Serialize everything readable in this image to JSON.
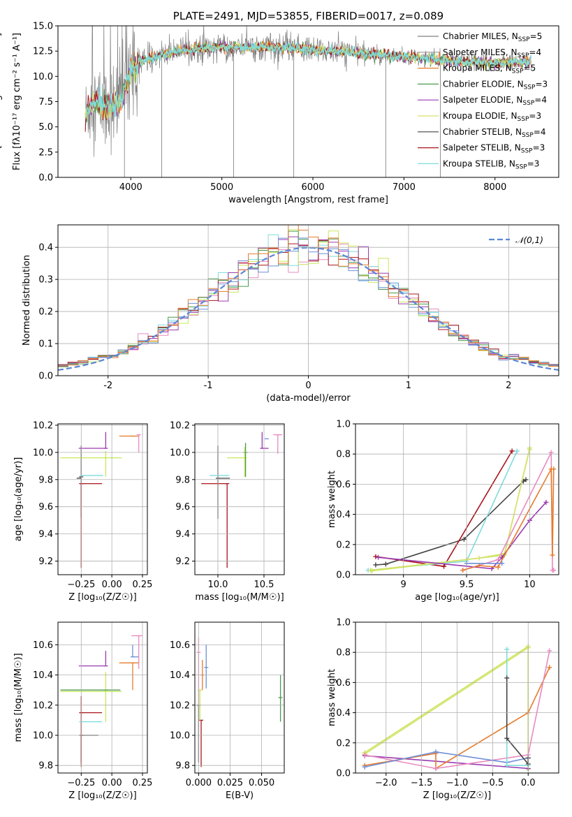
{
  "colors": {
    "Chabrier MILES": "#7f7f7f",
    "Salpeter MILES": "#999999",
    "Kroupa MILES": "#e57b2b",
    "Chabrier ELODIE": "#4c9a4c",
    "Salpeter ELODIE": "#9a3ab0",
    "Kroupa ELODIE": "#d8e16e",
    "Chabrier STELIB": "#444444",
    "Salpeter STELIB": "#a8141c",
    "Kroupa STELIB": "#7fdbdb",
    "pink": "#e88ac0",
    "blue": "#6f8fd8",
    "lime": "#c6e85a",
    "normal": "#5b86d6"
  },
  "chart_data": [
    {
      "id": "spectrum",
      "type": "line",
      "title": "PLATE=2491, MJD=53855, FIBERID=0017, z=0.089",
      "xlabel": "wavelength [Angstrom, rest frame]",
      "ylabel": "Flux [fλ10⁻¹⁷ erg cm⁻² s⁻¹ A⁻¹]",
      "xlim": [
        3200,
        8700
      ],
      "ylim": [
        0,
        15
      ],
      "xticks": [
        4000,
        5000,
        6000,
        7000,
        8000
      ],
      "yticks": [
        0.0,
        2.5,
        5.0,
        7.5,
        10.0,
        12.5,
        15.0
      ],
      "legend_position": "upper-right",
      "legend": [
        {
          "label": "Chabrier MILES, N",
          "sub": "SSP",
          "suffix": "=5",
          "color": "#7f7f7f"
        },
        {
          "label": "Salpeter MILES, N",
          "sub": "SSP",
          "suffix": "=4",
          "color": "#999999"
        },
        {
          "label": "Kroupa MILES, N",
          "sub": "SSP",
          "suffix": "=5",
          "color": "#e57b2b"
        },
        {
          "label": "Chabrier ELODIE, N",
          "sub": "SSP",
          "suffix": "=3",
          "color": "#4c9a4c"
        },
        {
          "label": "Salpeter ELODIE, N",
          "sub": "SSP",
          "suffix": "=4",
          "color": "#9a3ab0"
        },
        {
          "label": "Kroupa ELODIE, N",
          "sub": "SSP",
          "suffix": "=3",
          "color": "#d8e16e"
        },
        {
          "label": "Chabrier STELIB, N",
          "sub": "SSP",
          "suffix": "=4",
          "color": "#444444"
        },
        {
          "label": "Salpeter STELIB, N",
          "sub": "SSP",
          "suffix": "=3",
          "color": "#a8141c"
        },
        {
          "label": "Kroupa STELIB, N",
          "sub": "SSP",
          "suffix": "=3",
          "color": "#7fdbdb"
        }
      ],
      "model_curve": {
        "x": [
          3500,
          3550,
          3600,
          3700,
          3800,
          3900,
          4000,
          4100,
          4200,
          4300,
          4400,
          4500,
          4700,
          5000,
          5200,
          5500,
          5800,
          6000,
          6200,
          6500,
          6800,
          7000,
          7200,
          7400,
          7600,
          7800,
          8000,
          8200,
          8400
        ],
        "y": [
          5.8,
          7.2,
          7.6,
          6.9,
          7.0,
          7.8,
          10.6,
          11.4,
          11.8,
          12.0,
          12.2,
          12.5,
          12.7,
          12.9,
          12.9,
          12.9,
          12.8,
          12.6,
          12.5,
          12.3,
          12.1,
          11.9,
          11.8,
          11.6,
          11.5,
          11.4,
          11.3,
          11.4,
          11.5
        ]
      },
      "noise_amplitude": 1.6,
      "absorption_spikes": [
        3930,
        4340,
        5130,
        5790,
        6800,
        7400
      ]
    },
    {
      "id": "residuals",
      "type": "bar",
      "xlabel": "(data-model)/error",
      "ylabel": "Normed distribution",
      "xlim": [
        -2.5,
        2.5
      ],
      "ylim": [
        0,
        0.47
      ],
      "xticks": [
        -2,
        -1,
        0,
        1,
        2
      ],
      "yticks": [
        0.0,
        0.1,
        0.2,
        0.3,
        0.4
      ],
      "legend_position": "upper-right",
      "legend_label": "𝒩(0,1)",
      "bin_width": 0.1,
      "gaussian": {
        "mean": 0,
        "sigma": 1
      }
    },
    {
      "id": "age-vs-Z",
      "type": "scatter",
      "xlabel": "Z [log₁₀(Z/Z☉)]",
      "ylabel": "age  [log₁₀(age/yr)]",
      "xlim": [
        -0.44,
        0.29
      ],
      "ylim": [
        9.1,
        10.21
      ],
      "xticks": [
        -0.25,
        0.0,
        0.25
      ],
      "xtick_labels": [
        "−0.25",
        "0.00",
        "0.25"
      ],
      "yticks": [
        9.2,
        9.4,
        9.6,
        9.8,
        10.0,
        10.2
      ],
      "points": [
        {
          "x": -0.25,
          "y": 9.82,
          "xerr": [
            0.0,
            0.0
          ],
          "yerr": [
            0.3,
            0.23
          ],
          "color": "#444444"
        },
        {
          "x": -0.25,
          "y": 9.77,
          "xerr": [
            0.0,
            0.17
          ],
          "yerr": [
            0.62,
            0.0
          ],
          "color": "#a8141c"
        },
        {
          "x": -0.24,
          "y": 9.83,
          "xerr": [
            0.0,
            0.17
          ],
          "yerr": [
            0.0,
            0.0
          ],
          "color": "#7fdbdb"
        },
        {
          "x": -0.27,
          "y": 9.81,
          "xerr": [
            0.0,
            0.0
          ],
          "yerr": [
            0.0,
            0.0
          ],
          "color": "#444444"
        },
        {
          "x": -0.05,
          "y": 9.96,
          "xerr": [
            0.37,
            0.13
          ],
          "yerr": [
            0.14,
            0.05
          ],
          "color": "#c6e85a"
        },
        {
          "x": -0.05,
          "y": 10.03,
          "xerr": [
            0.22,
            0.0
          ],
          "yerr": [
            0.0,
            0.12
          ],
          "color": "#9a3ab0"
        },
        {
          "x": 0.17,
          "y": 10.12,
          "xerr": [
            0.11,
            0.05
          ],
          "yerr": [
            0.0,
            0.0
          ],
          "color": "#e57b2b"
        },
        {
          "x": 0.22,
          "y": 10.13,
          "xerr": [
            0.0,
            0.0
          ],
          "yerr": [
            0.13,
            0.0
          ],
          "color": "#e88ac0"
        }
      ]
    },
    {
      "id": "age-vs-mass",
      "type": "scatter",
      "xlabel": "mass [log₁₀(M/M☉)]",
      "ylabel": "",
      "xlim": [
        9.75,
        10.72
      ],
      "ylim": [
        9.1,
        10.21
      ],
      "xticks": [
        10.0,
        10.5
      ],
      "xtick_labels": [
        "10.0",
        "10.5"
      ],
      "yticks": [
        9.2,
        9.4,
        9.6,
        9.8,
        10.0,
        10.2
      ],
      "points": [
        {
          "x": 10.0,
          "y": 9.81,
          "xerr": [
            0.0,
            0.13
          ],
          "yerr": [
            0.3,
            0.24
          ],
          "color": "#444444"
        },
        {
          "x": 10.1,
          "y": 9.77,
          "xerr": [
            0.28,
            0.0
          ],
          "yerr": [
            0.62,
            0.0
          ],
          "color": "#a8141c"
        },
        {
          "x": 10.1,
          "y": 9.83,
          "xerr": [
            0.19,
            0.0
          ],
          "yerr": [
            0.0,
            0.0
          ],
          "color": "#7fdbdb"
        },
        {
          "x": 10.29,
          "y": 9.96,
          "xerr": [
            0.19,
            0.0
          ],
          "yerr": [
            0.14,
            0.08
          ],
          "color": "#c6e85a"
        },
        {
          "x": 10.3,
          "y": 10.0,
          "xerr": [
            0.0,
            0.0
          ],
          "yerr": [
            0.18,
            0.07
          ],
          "color": "#4c9a4c"
        },
        {
          "x": 10.48,
          "y": 10.03,
          "xerr": [
            0.0,
            0.07
          ],
          "yerr": [
            0.0,
            0.12
          ],
          "color": "#9a3ab0"
        },
        {
          "x": 10.53,
          "y": 10.1,
          "xerr": [
            0.0,
            0.0
          ],
          "yerr": [
            0.0,
            0.0
          ],
          "color": "#6f8fd8"
        },
        {
          "x": 10.65,
          "y": 10.13,
          "xerr": [
            0.05,
            0.05
          ],
          "yerr": [
            0.14,
            0.0
          ],
          "color": "#e88ac0"
        }
      ]
    },
    {
      "id": "weight-vs-age",
      "type": "line",
      "xlabel": "age  [log₁₀(age/yr)]",
      "ylabel": "mass weight",
      "xlim": [
        8.62,
        10.23
      ],
      "ylim": [
        0,
        1.0
      ],
      "xticks": [
        9.0,
        9.5,
        10.0
      ],
      "yticks": [
        0.0,
        0.2,
        0.4,
        0.6,
        0.8,
        1.0
      ],
      "series": [
        {
          "color": "#444444",
          "x": [
            8.78,
            8.86,
            9.48,
            9.95,
            9.97
          ],
          "y": [
            0.065,
            0.07,
            0.235,
            0.62,
            0.63
          ]
        },
        {
          "color": "#a8141c",
          "x": [
            8.78,
            9.32,
            9.86
          ],
          "y": [
            0.12,
            0.055,
            0.82
          ]
        },
        {
          "color": "#7fdbdb",
          "x": [
            8.72,
            9.5,
            9.9
          ],
          "y": [
            0.03,
            0.09,
            0.82
          ]
        },
        {
          "color": "#c6e85a",
          "x": [
            8.75,
            9.5,
            9.8,
            10.0
          ],
          "y": [
            0.025,
            0.1,
            0.13,
            0.84
          ]
        },
        {
          "color": "#d8e16e",
          "x": [
            8.74,
            9.6,
            9.8,
            10.0
          ],
          "y": [
            0.03,
            0.11,
            0.14,
            0.83
          ]
        },
        {
          "color": "#9a3ab0",
          "x": [
            8.8,
            9.7,
            9.78,
            10.0,
            10.13
          ],
          "y": [
            0.115,
            0.04,
            0.115,
            0.36,
            0.48
          ]
        },
        {
          "color": "#e88ac0",
          "x": [
            9.47,
            9.75,
            10.17,
            10.18,
            10.19
          ],
          "y": [
            0.03,
            0.1,
            0.81,
            0.03,
            0.03
          ]
        },
        {
          "color": "#e57b2b",
          "x": [
            9.47,
            9.6,
            9.75,
            10.17,
            10.18,
            10.19
          ],
          "y": [
            0.03,
            0.06,
            0.05,
            0.7,
            0.13,
            0.7
          ]
        },
        {
          "color": "#6f8fd8",
          "x": [
            9.5,
            9.78
          ],
          "y": [
            0.075,
            0.075
          ]
        }
      ]
    },
    {
      "id": "mass-vs-Z",
      "type": "scatter",
      "xlabel": "Z [log₁₀(Z/Z☉)]",
      "ylabel": "mass [log₁₀(M/M☉)]",
      "xlim": [
        -0.44,
        0.29
      ],
      "ylim": [
        9.75,
        10.75
      ],
      "xticks": [
        -0.25,
        0.0,
        0.25
      ],
      "xtick_labels": [
        "−0.25",
        "0.00",
        "0.25"
      ],
      "yticks": [
        9.8,
        10.0,
        10.2,
        10.4,
        10.6
      ],
      "points": [
        {
          "x": -0.25,
          "y": 10.0,
          "xerr": [
            0.0,
            0.14
          ],
          "yerr": [
            0.18,
            0.0
          ],
          "color": "#444444"
        },
        {
          "x": -0.25,
          "y": 10.15,
          "xerr": [
            0.0,
            0.17
          ],
          "yerr": [
            0.36,
            0.11
          ],
          "color": "#a8141c"
        },
        {
          "x": -0.25,
          "y": 10.09,
          "xerr": [
            0.0,
            0.17
          ],
          "yerr": [
            0.0,
            0.0
          ],
          "color": "#7fdbdb"
        },
        {
          "x": -0.05,
          "y": 10.29,
          "xerr": [
            0.37,
            0.13
          ],
          "yerr": [
            0.2,
            0.13
          ],
          "color": "#c6e85a"
        },
        {
          "x": -0.05,
          "y": 10.3,
          "xerr": [
            0.37,
            0.12
          ],
          "yerr": [
            0.0,
            0.0
          ],
          "color": "#4c9a4c"
        },
        {
          "x": -0.05,
          "y": 10.46,
          "xerr": [
            0.22,
            0.0
          ],
          "yerr": [
            0.0,
            0.1
          ],
          "color": "#9a3ab0"
        },
        {
          "x": 0.17,
          "y": 10.48,
          "xerr": [
            0.11,
            0.05
          ],
          "yerr": [
            0.18,
            0.0
          ],
          "color": "#e57b2b"
        },
        {
          "x": 0.17,
          "y": 10.52,
          "xerr": [
            0.0,
            0.05
          ],
          "yerr": [
            0.0,
            0.08
          ],
          "color": "#6f8fd8"
        },
        {
          "x": 0.22,
          "y": 10.66,
          "xerr": [
            0.06,
            0.03
          ],
          "yerr": [
            0.22,
            0.0
          ],
          "color": "#e88ac0"
        }
      ]
    },
    {
      "id": "mass-vs-EBV",
      "type": "scatter",
      "xlabel": "E(B-V)",
      "ylabel": "",
      "xlim": [
        -0.003,
        0.068
      ],
      "ylim": [
        9.75,
        10.75
      ],
      "xticks": [
        0.0,
        0.025,
        0.05
      ],
      "xtick_labels": [
        "0.000",
        "0.025",
        "0.050"
      ],
      "yticks": [
        9.8,
        10.0,
        10.2,
        10.4,
        10.6
      ],
      "points": [
        {
          "x": 0.0,
          "y": 10.2,
          "xerr": [
            0.0,
            0.0
          ],
          "yerr": [
            0.38,
            0.0
          ],
          "color": "#444444"
        },
        {
          "x": 0.002,
          "y": 10.1,
          "xerr": [
            0.0,
            0.0
          ],
          "yerr": [
            0.31,
            0.0
          ],
          "color": "#a8141c"
        },
        {
          "x": 0.001,
          "y": 10.3,
          "xerr": [
            0.0,
            0.0
          ],
          "yerr": [
            0.2,
            0.0
          ],
          "color": "#c6e85a"
        },
        {
          "x": 0.0,
          "y": 10.55,
          "xerr": [
            0.0,
            0.0
          ],
          "yerr": [
            0.35,
            0.1
          ],
          "color": "#e88ac0"
        },
        {
          "x": 0.003,
          "y": 10.4,
          "xerr": [
            0.0,
            0.0
          ],
          "yerr": [
            0.1,
            0.1
          ],
          "color": "#e57b2b"
        },
        {
          "x": 0.006,
          "y": 10.45,
          "xerr": [
            0.0,
            0.0
          ],
          "yerr": [
            0.14,
            0.15
          ],
          "color": "#6f8fd8"
        },
        {
          "x": 0.065,
          "y": 10.25,
          "xerr": [
            0.0,
            0.0
          ],
          "yerr": [
            0.16,
            0.15
          ],
          "color": "#4c9a4c"
        }
      ]
    },
    {
      "id": "weight-vs-Z",
      "type": "line",
      "xlabel": "Z [log₁₀(Z/Z☉)]",
      "ylabel": "mass weight",
      "xlim": [
        -2.43,
        0.43
      ],
      "ylim": [
        0,
        1.0
      ],
      "xticks": [
        -2.0,
        -1.5,
        -1.0,
        -0.5,
        0.0
      ],
      "xtick_labels": [
        "−2.0",
        "−1.5",
        "−1.0",
        "−0.5",
        "0.0"
      ],
      "yticks": [
        0.0,
        0.2,
        0.4,
        0.6,
        0.8,
        1.0
      ],
      "series": [
        {
          "color": "#c6e85a",
          "x": [
            -2.3,
            0.0,
            0.0
          ],
          "y": [
            0.135,
            0.84,
            0.025
          ]
        },
        {
          "color": "#d8e16e",
          "x": [
            -2.3,
            0.0,
            0.0
          ],
          "y": [
            0.125,
            0.83,
            0.03
          ]
        },
        {
          "color": "#9a3ab0",
          "x": [
            -2.3,
            0.0
          ],
          "y": [
            0.115,
            0.03
          ]
        },
        {
          "color": "#e57b2b",
          "x": [
            -2.3,
            -1.3,
            -1.3,
            0.0,
            0.3
          ],
          "y": [
            0.05,
            0.13,
            0.03,
            0.4,
            0.7
          ]
        },
        {
          "color": "#e88ac0",
          "x": [
            -2.3,
            -1.3,
            0.0,
            0.3
          ],
          "y": [
            0.12,
            0.03,
            0.12,
            0.81
          ]
        },
        {
          "color": "#6f8fd8",
          "x": [
            -2.3,
            -1.3,
            -0.3,
            0.0
          ],
          "y": [
            0.04,
            0.14,
            0.07,
            0.1
          ]
        },
        {
          "color": "#7fdbdb",
          "x": [
            -0.3,
            -0.3,
            0.0
          ],
          "y": [
            0.82,
            0.05,
            0.05
          ]
        },
        {
          "color": "#444444",
          "x": [
            -0.3,
            -0.3,
            0.0,
            0.0
          ],
          "y": [
            0.63,
            0.23,
            0.06,
            0.1
          ]
        }
      ]
    }
  ]
}
